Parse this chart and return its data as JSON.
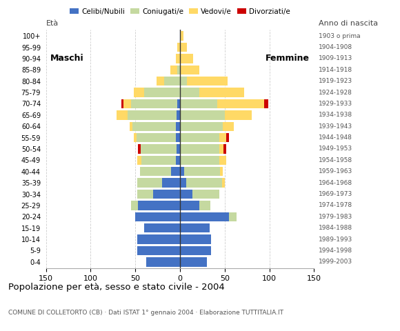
{
  "age_groups": [
    "0-4",
    "5-9",
    "10-14",
    "15-19",
    "20-24",
    "25-29",
    "30-34",
    "35-39",
    "40-44",
    "45-49",
    "50-54",
    "55-59",
    "60-64",
    "65-69",
    "70-74",
    "75-79",
    "80-84",
    "85-89",
    "90-94",
    "95-99",
    "100+"
  ],
  "birth_years": [
    "1999-2003",
    "1994-1998",
    "1989-1993",
    "1984-1988",
    "1979-1983",
    "1974-1978",
    "1969-1973",
    "1964-1968",
    "1959-1963",
    "1954-1958",
    "1949-1953",
    "1944-1948",
    "1939-1943",
    "1934-1938",
    "1929-1933",
    "1924-1928",
    "1919-1923",
    "1914-1918",
    "1909-1913",
    "1904-1908",
    "1903 o prima"
  ],
  "colors": {
    "celibinubili": "#4472c4",
    "coniugati": "#c5d9a0",
    "vedovi": "#ffd966",
    "divorziati": "#cc0000"
  },
  "males": {
    "celibinubili": [
      38,
      48,
      48,
      40,
      50,
      47,
      30,
      20,
      10,
      5,
      4,
      5,
      5,
      4,
      3,
      0,
      0,
      0,
      0,
      0,
      0
    ],
    "coniugati": [
      0,
      0,
      0,
      0,
      0,
      8,
      18,
      28,
      35,
      38,
      40,
      44,
      48,
      55,
      52,
      40,
      18,
      3,
      0,
      0,
      0
    ],
    "vedovi": [
      0,
      0,
      0,
      0,
      0,
      0,
      0,
      0,
      0,
      5,
      0,
      3,
      3,
      12,
      8,
      12,
      8,
      8,
      5,
      3,
      0
    ],
    "divorziati": [
      0,
      0,
      0,
      0,
      0,
      0,
      0,
      0,
      0,
      0,
      3,
      0,
      0,
      0,
      3,
      0,
      0,
      0,
      0,
      0,
      0
    ]
  },
  "females": {
    "celibinubili": [
      30,
      35,
      35,
      33,
      55,
      22,
      14,
      7,
      5,
      0,
      0,
      0,
      0,
      0,
      0,
      0,
      0,
      0,
      0,
      0,
      0
    ],
    "coniugati": [
      0,
      0,
      0,
      0,
      8,
      12,
      30,
      40,
      40,
      44,
      44,
      44,
      48,
      50,
      42,
      22,
      8,
      0,
      0,
      0,
      0
    ],
    "vedovi": [
      0,
      0,
      0,
      0,
      0,
      0,
      0,
      3,
      3,
      8,
      5,
      8,
      12,
      30,
      52,
      50,
      45,
      22,
      15,
      8,
      4
    ],
    "divorziati": [
      0,
      0,
      0,
      0,
      0,
      0,
      0,
      0,
      0,
      0,
      3,
      3,
      0,
      0,
      5,
      0,
      0,
      0,
      0,
      0,
      0
    ]
  },
  "title": "Popolazione per età, sesso e stato civile - 2004",
  "subtitle": "COMUNE DI COLLETORTO (CB) · Dati ISTAT 1° gennaio 2004 · Elaborazione TUTTITALIA.IT",
  "eta_label": "Età",
  "anno_label": "Anno di nascita",
  "label_maschi": "Maschi",
  "label_femmine": "Femmine",
  "legend_labels": [
    "Celibi/Nubili",
    "Coniugati/e",
    "Vedovi/e",
    "Divorziati/e"
  ],
  "xlim": 150
}
